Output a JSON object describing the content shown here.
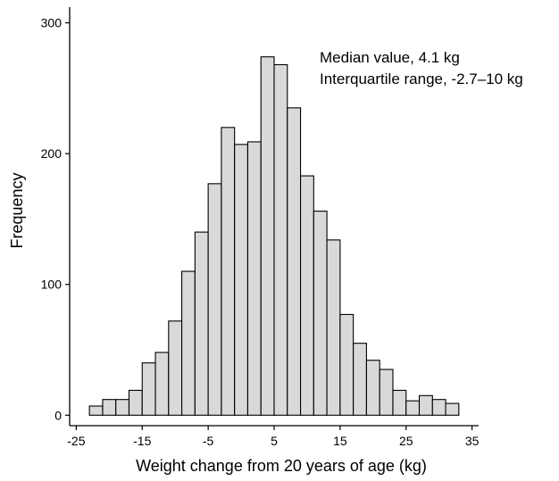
{
  "chart_data": {
    "type": "bar",
    "subtype": "histogram",
    "title": "",
    "xlabel": "Weight change from 20 years of age (kg)",
    "ylabel": "Frequency",
    "annotations": [
      "Median value,  4.1 kg",
      "Interquartile range, -2.7–10 kg"
    ],
    "xlim": [
      -26,
      36
    ],
    "ylim": [
      -8,
      312
    ],
    "xticks": [
      -25,
      -15,
      -5,
      5,
      15,
      25,
      35
    ],
    "yticks": [
      0,
      100,
      200,
      300
    ],
    "bin_width": 2,
    "bins": [
      {
        "start": -23,
        "end": -21,
        "count": 7
      },
      {
        "start": -21,
        "end": -19,
        "count": 12
      },
      {
        "start": -19,
        "end": -17,
        "count": 12
      },
      {
        "start": -17,
        "end": -15,
        "count": 19
      },
      {
        "start": -15,
        "end": -13,
        "count": 40
      },
      {
        "start": -13,
        "end": -11,
        "count": 48
      },
      {
        "start": -11,
        "end": -9,
        "count": 72
      },
      {
        "start": -9,
        "end": -7,
        "count": 110
      },
      {
        "start": -7,
        "end": -5,
        "count": 140
      },
      {
        "start": -5,
        "end": -3,
        "count": 177
      },
      {
        "start": -3,
        "end": -1,
        "count": 220
      },
      {
        "start": -1,
        "end": 1,
        "count": 207
      },
      {
        "start": 1,
        "end": 3,
        "count": 209
      },
      {
        "start": 3,
        "end": 5,
        "count": 274
      },
      {
        "start": 5,
        "end": 7,
        "count": 268
      },
      {
        "start": 7,
        "end": 9,
        "count": 235
      },
      {
        "start": 9,
        "end": 11,
        "count": 183
      },
      {
        "start": 11,
        "end": 13,
        "count": 156
      },
      {
        "start": 13,
        "end": 15,
        "count": 134
      },
      {
        "start": 15,
        "end": 17,
        "count": 77
      },
      {
        "start": 17,
        "end": 19,
        "count": 55
      },
      {
        "start": 19,
        "end": 21,
        "count": 42
      },
      {
        "start": 21,
        "end": 23,
        "count": 35
      },
      {
        "start": 23,
        "end": 25,
        "count": 19
      },
      {
        "start": 25,
        "end": 27,
        "count": 11
      },
      {
        "start": 27,
        "end": 29,
        "count": 15
      },
      {
        "start": 29,
        "end": 31,
        "count": 12
      },
      {
        "start": 31,
        "end": 33,
        "count": 9
      }
    ],
    "bar_fill": "#d9d9d9",
    "bar_stroke": "#000000",
    "grid": false,
    "legend": "none"
  }
}
